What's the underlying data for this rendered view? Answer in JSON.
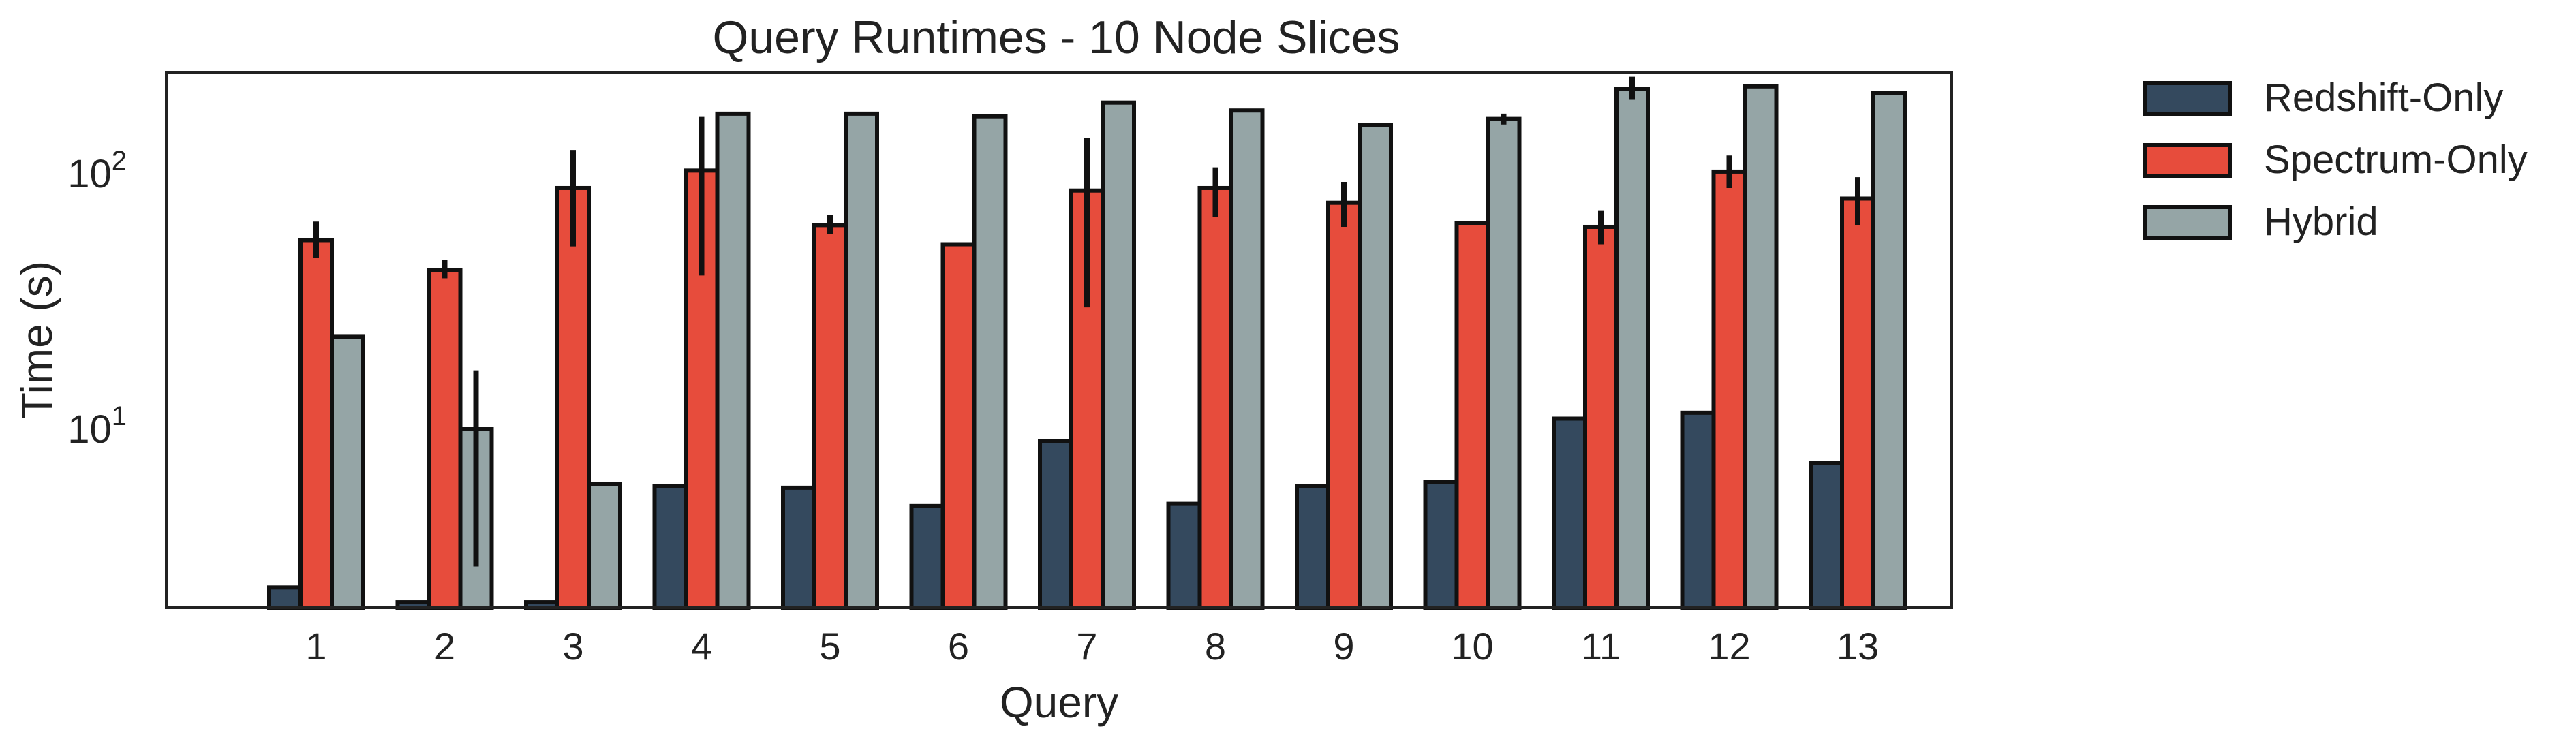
{
  "chart_data": {
    "type": "bar",
    "title": "Query Runtimes - 10 Node Slices",
    "xlabel": "Query",
    "ylabel": "Time (s)",
    "yscale": "log",
    "ylim": [
      2,
      250
    ],
    "yticks": [
      {
        "value": 10,
        "base": "10",
        "exp": "1"
      },
      {
        "value": 100,
        "base": "10",
        "exp": "2"
      }
    ],
    "categories": [
      "1",
      "2",
      "3",
      "4",
      "5",
      "6",
      "7",
      "8",
      "9",
      "10",
      "11",
      "12",
      "13"
    ],
    "grid": false,
    "legend_position": "outside right",
    "series": [
      {
        "name": "Redshift-Only",
        "color": "#34495e",
        "values": [
          2.4,
          2.1,
          2.1,
          6.0,
          5.9,
          5.0,
          9.0,
          5.1,
          6.0,
          6.2,
          11.0,
          11.6,
          7.4
        ],
        "err_low": [
          null,
          2.07,
          2.07,
          null,
          5.85,
          null,
          null,
          null,
          null,
          null,
          null,
          11.5,
          null
        ],
        "err_high": [
          null,
          2.13,
          2.13,
          null,
          5.95,
          null,
          null,
          null,
          null,
          null,
          null,
          11.7,
          null
        ]
      },
      {
        "name": "Spectrum-Only",
        "color": "#e74c3c",
        "values": [
          55,
          42,
          88,
          103,
          63,
          53,
          86,
          88,
          77,
          64,
          62,
          102,
          80
        ],
        "err_low": [
          47,
          39,
          52,
          40,
          58,
          null,
          30,
          68,
          62,
          null,
          53,
          88,
          63
        ],
        "err_high": [
          65,
          46,
          124,
          167,
          69,
          null,
          138,
          106,
          93,
          null,
          72,
          118,
          97
        ],
        "err_low_note": null
      },
      {
        "name": "Hybrid",
        "color": "#95a5a6",
        "values": [
          23,
          10,
          6.1,
          172,
          172,
          168,
          190,
          177,
          155,
          164,
          215,
          220,
          207
        ],
        "err_low": [
          22.6,
          2.9,
          6.0,
          null,
          null,
          null,
          null,
          175,
          null,
          156,
          195,
          218,
          null
        ],
        "err_high": [
          23.4,
          17,
          6.2,
          null,
          null,
          null,
          null,
          179,
          null,
          172,
          240,
          222,
          null
        ]
      }
    ]
  }
}
